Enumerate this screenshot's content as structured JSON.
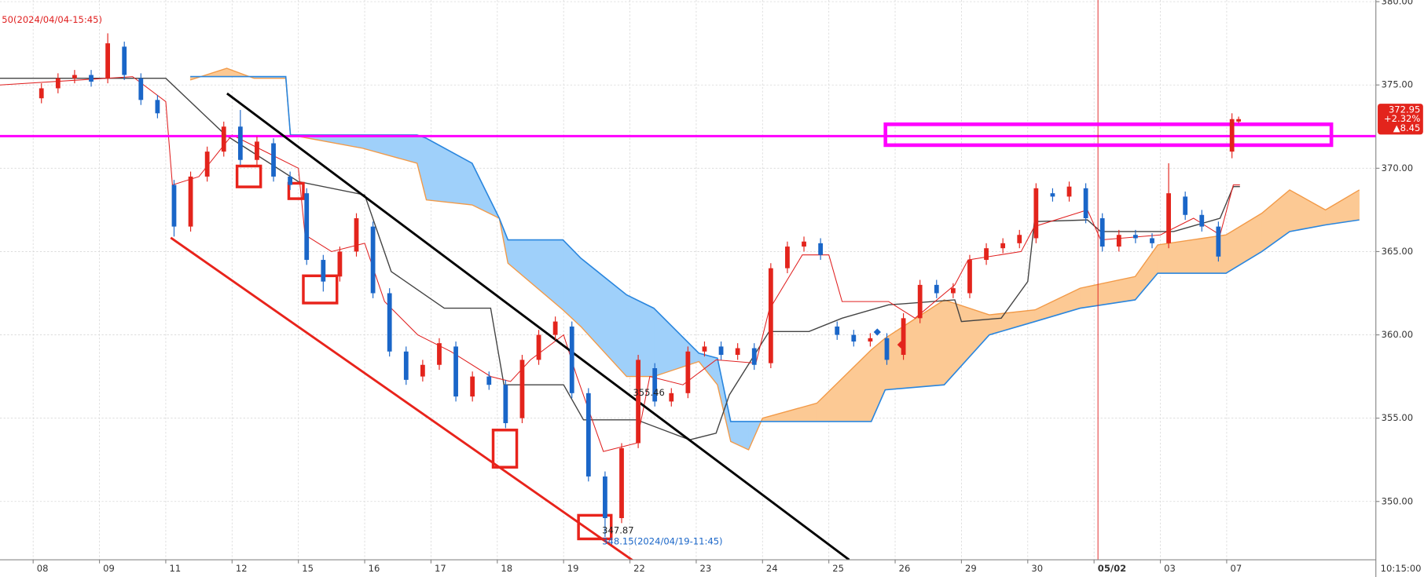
{
  "chart_data": {
    "type": "candlestick",
    "annotations": {
      "reference": "50(2024/04/04-15:45)",
      "mid_price": "355.46",
      "low_price": "347.87",
      "low_ref": "348.15(2024/04/19-11:45)",
      "time": "10:15:00"
    },
    "xlim": [
      -0.5,
      20.25
    ],
    "xticks": [
      {
        "value": 0,
        "label": "08"
      },
      {
        "value": 1,
        "label": "09"
      },
      {
        "value": 2,
        "label": "11"
      },
      {
        "value": 3,
        "label": "12"
      },
      {
        "value": 4,
        "label": "15"
      },
      {
        "value": 5,
        "label": "16"
      },
      {
        "value": 6,
        "label": "17"
      },
      {
        "value": 7,
        "label": "18"
      },
      {
        "value": 8,
        "label": "19"
      },
      {
        "value": 9,
        "label": "22"
      },
      {
        "value": 10,
        "label": "23"
      },
      {
        "value": 11,
        "label": "24"
      },
      {
        "value": 12,
        "label": "25"
      },
      {
        "value": 13,
        "label": "26"
      },
      {
        "value": 14,
        "label": "29"
      },
      {
        "value": 15,
        "label": "30"
      },
      {
        "value": 16,
        "label": "05/02"
      },
      {
        "value": 17,
        "label": "03"
      },
      {
        "value": 18,
        "label": "07"
      }
    ],
    "ylim": [
      346.5,
      380.1
    ],
    "yticks": [
      {
        "value": 350,
        "label": "350.00"
      },
      {
        "value": 355,
        "label": "355.00"
      },
      {
        "value": 360,
        "label": "360.00"
      },
      {
        "value": 365,
        "label": "365.00"
      },
      {
        "value": 370,
        "label": "370.00"
      },
      {
        "value": 375,
        "label": "375.00"
      },
      {
        "value": 380,
        "label": "380.00"
      }
    ],
    "grid": true,
    "candles": {
      "up_color": "#e3241c",
      "down_color": "#1a66c8",
      "x": [
        0.125,
        0.375,
        0.625,
        0.875,
        1.125,
        1.375,
        1.625,
        1.875,
        2.125,
        2.375,
        2.625,
        2.875,
        3.125,
        3.375,
        3.625,
        3.875,
        4.125,
        4.375,
        4.625,
        4.875,
        5.125,
        5.375,
        5.625,
        5.875,
        6.125,
        6.375,
        6.625,
        6.875,
        7.125,
        7.375,
        7.625,
        7.875,
        8.125,
        8.375,
        8.625,
        8.875,
        9.125,
        9.375,
        9.625,
        9.875,
        10.125,
        10.375,
        10.625,
        10.875,
        11.125,
        11.375,
        11.625,
        11.875,
        12.125,
        12.375,
        12.625,
        12.875,
        13.125,
        13.375,
        13.625,
        13.875,
        14.125,
        14.375,
        14.625,
        14.875,
        15.125,
        15.375,
        15.625,
        15.875,
        16.125,
        16.375,
        16.625,
        16.875,
        17.125,
        17.375,
        17.625,
        17.875,
        18.08,
        18.18
      ],
      "open": [
        374.2,
        374.8,
        375.4,
        375.6,
        375.4,
        377.3,
        375.4,
        374.1,
        369,
        366.5,
        369.5,
        371,
        372.5,
        370.5,
        371.5,
        369.5,
        368.5,
        364.5,
        363.5,
        365,
        366.5,
        362.5,
        359,
        357.5,
        358.2,
        359.3,
        356.3,
        357.5,
        357,
        355,
        358.5,
        360,
        360.5,
        356.5,
        351.5,
        349,
        353.5,
        358,
        356,
        356.5,
        359,
        359.3,
        358.8,
        359.2,
        358.3,
        364,
        365.3,
        365.5,
        360.5,
        360,
        359.6,
        359.8,
        358.8,
        361,
        363,
        362.5,
        362.5,
        364.5,
        365.2,
        365.5,
        365.8,
        368.5,
        368.3,
        368.8,
        367,
        365.3,
        366,
        365.8,
        365.5,
        368.3,
        367.2,
        366.5,
        371,
        372.8
      ],
      "high": [
        375.1,
        375.7,
        375.9,
        375.9,
        378.1,
        377.6,
        375.7,
        374.4,
        369.3,
        369.8,
        371.3,
        372.8,
        373.5,
        371.9,
        371.8,
        369.8,
        368.8,
        364.8,
        365.3,
        367.3,
        366.8,
        362.8,
        359.3,
        358.5,
        359.8,
        359.6,
        357.8,
        357.8,
        357.3,
        358.8,
        360.3,
        361.1,
        360.8,
        356.8,
        351.8,
        353.5,
        358.8,
        358.3,
        356.8,
        359.3,
        359.6,
        359.6,
        359.5,
        359.5,
        364.3,
        365.6,
        365.9,
        365.8,
        360.8,
        360.3,
        360.1,
        360.1,
        361.3,
        363.3,
        363.3,
        363.1,
        364.8,
        365.5,
        365.8,
        366.3,
        369.1,
        368.8,
        369.2,
        369.1,
        367.3,
        366.3,
        366.3,
        366.1,
        370.3,
        368.6,
        367.5,
        366.8,
        373.3,
        373.1
      ],
      "low": [
        373.9,
        374.5,
        375.1,
        374.9,
        375.1,
        375.3,
        373.8,
        373,
        365.9,
        366.2,
        369.2,
        370.7,
        370.2,
        370.2,
        369.2,
        368.7,
        364.2,
        362.6,
        363.2,
        364.7,
        362.2,
        358.7,
        357,
        357.2,
        357.9,
        356,
        356,
        356.7,
        354.4,
        354.7,
        358.2,
        359.7,
        356.2,
        351.2,
        347.87,
        348.7,
        353.2,
        355.7,
        355.7,
        356.2,
        358.7,
        358.5,
        358.5,
        357.9,
        358,
        363.7,
        365,
        364.5,
        359.7,
        359.3,
        359.3,
        358.2,
        358.5,
        360.7,
        362.2,
        362.2,
        362.2,
        364.2,
        364.9,
        365.2,
        365.5,
        368,
        368,
        366.7,
        365,
        365,
        365.5,
        365.2,
        365.2,
        366.9,
        366.2,
        364.4,
        370.6,
        372.7
      ],
      "close": [
        374.8,
        375.4,
        375.6,
        375.2,
        377.5,
        375.6,
        374.1,
        373.3,
        366.5,
        369.5,
        371,
        372.5,
        370.5,
        371.6,
        369.5,
        369,
        364.5,
        363.2,
        365,
        367,
        362.5,
        359,
        357.3,
        358.2,
        359.5,
        356.3,
        357.5,
        357,
        354.7,
        358.5,
        360,
        360.8,
        356.5,
        351.5,
        349,
        353.2,
        358.5,
        356,
        356.5,
        359,
        359.3,
        358.8,
        359.2,
        358.2,
        364,
        365.3,
        365.6,
        364.8,
        360,
        359.6,
        359.8,
        358.5,
        361,
        363,
        362.5,
        362.8,
        364.5,
        365.2,
        365.5,
        366,
        368.8,
        368.3,
        368.9,
        367,
        365.3,
        366,
        365.8,
        365.5,
        368.5,
        367.2,
        366.5,
        364.7,
        372.95,
        372.95
      ]
    },
    "conversion_line": {
      "color": "#e02020",
      "x": [
        -0.5,
        1.5,
        2.0,
        2.1,
        2.5,
        3.0,
        3.5,
        4.0,
        4.1,
        4.5,
        5.0,
        5.3,
        5.8,
        6.3,
        6.9,
        7.2,
        7.5,
        8.0,
        8.2,
        8.6,
        9.1,
        9.3,
        9.8,
        10.3,
        10.9,
        11.1,
        11.6,
        12.0,
        12.2,
        12.9,
        13.3,
        13.9,
        14.1,
        14.9,
        15.1,
        15.9,
        16.1,
        17.0,
        17.5,
        17.9,
        18.1,
        18.2
      ],
      "values": [
        375,
        375.5,
        374,
        369,
        369.5,
        372,
        371,
        370,
        366,
        365,
        365.5,
        362,
        360,
        359,
        357.5,
        357.2,
        358.5,
        360,
        357.5,
        353,
        353.5,
        357.5,
        357,
        358.5,
        358.3,
        361.5,
        364.8,
        364.8,
        362,
        362,
        361,
        363,
        364.5,
        365,
        366.5,
        367.5,
        365.7,
        366,
        367,
        366,
        369,
        369
      ]
    },
    "base_line": {
      "color": "#444444",
      "x": [
        -0.5,
        2.0,
        2.9,
        4.0,
        5.0,
        5.4,
        6.2,
        6.9,
        7.1,
        8.0,
        8.3,
        9.1,
        9.9,
        10.3,
        10.5,
        11.1,
        11.7,
        12.2,
        12.9,
        13.9,
        14.0,
        14.6,
        15.0,
        15.1,
        15.9,
        16.1,
        17.2,
        17.9,
        18.1,
        18.2
      ],
      "values": [
        375.4,
        375.4,
        372,
        369.2,
        368.4,
        363.8,
        361.6,
        361.6,
        357,
        357,
        354.9,
        354.9,
        353.7,
        354.1,
        356.4,
        360.2,
        360.2,
        361,
        361.8,
        362.1,
        360.8,
        361,
        363.2,
        366.8,
        366.9,
        366.2,
        366.2,
        367,
        368.9,
        368.9
      ]
    },
    "cloud": {
      "x": [
        2.37,
        2.92,
        3.33,
        3.81,
        3.88,
        4.97,
        5.79,
        5.93,
        6.62,
        7.03,
        7.16,
        7.99,
        8.26,
        8.95,
        9.36,
        10.04,
        10.32,
        10.52,
        10.79,
        11.0,
        11.82,
        12.64,
        12.85,
        13.74,
        14.42,
        15.11,
        15.79,
        16.62,
        16.96,
        17.99,
        18.53,
        18.95,
        19.49,
        20.0
      ],
      "span_a": {
        "color": "#f29a48",
        "fill": "#fcc994",
        "values": [
          375.3,
          376,
          375.4,
          375.4,
          372,
          371.2,
          370.3,
          368.1,
          367.8,
          367,
          364.3,
          361.5,
          360.5,
          357.5,
          357.5,
          358.4,
          357,
          353.6,
          353.1,
          355,
          355.9,
          359.1,
          359.8,
          362.1,
          361.2,
          361.5,
          362.8,
          363.5,
          365.4,
          366,
          367.3,
          368.7,
          367.5,
          368.7
        ]
      },
      "span_b": {
        "color": "#2a86de",
        "fill": "#9fd0fa",
        "values": [
          375.5,
          375.5,
          375.5,
          375.5,
          372,
          372,
          372,
          371.8,
          370.3,
          367,
          365.7,
          365.7,
          364.6,
          362.4,
          361.6,
          358.9,
          358.6,
          354.8,
          354.8,
          354.8,
          354.8,
          354.8,
          356.7,
          357,
          360,
          360.8,
          361.6,
          362.1,
          363.7,
          363.7,
          365,
          366.2,
          366.6,
          366.9
        ]
      }
    },
    "horizontal_line": {
      "value": 371.93,
      "color": "#ff00ff"
    },
    "price_tag": {
      "price": "372.95",
      "change_pct": "+2.32%",
      "change": "▲8.45",
      "color": "#e3241c"
    }
  }
}
